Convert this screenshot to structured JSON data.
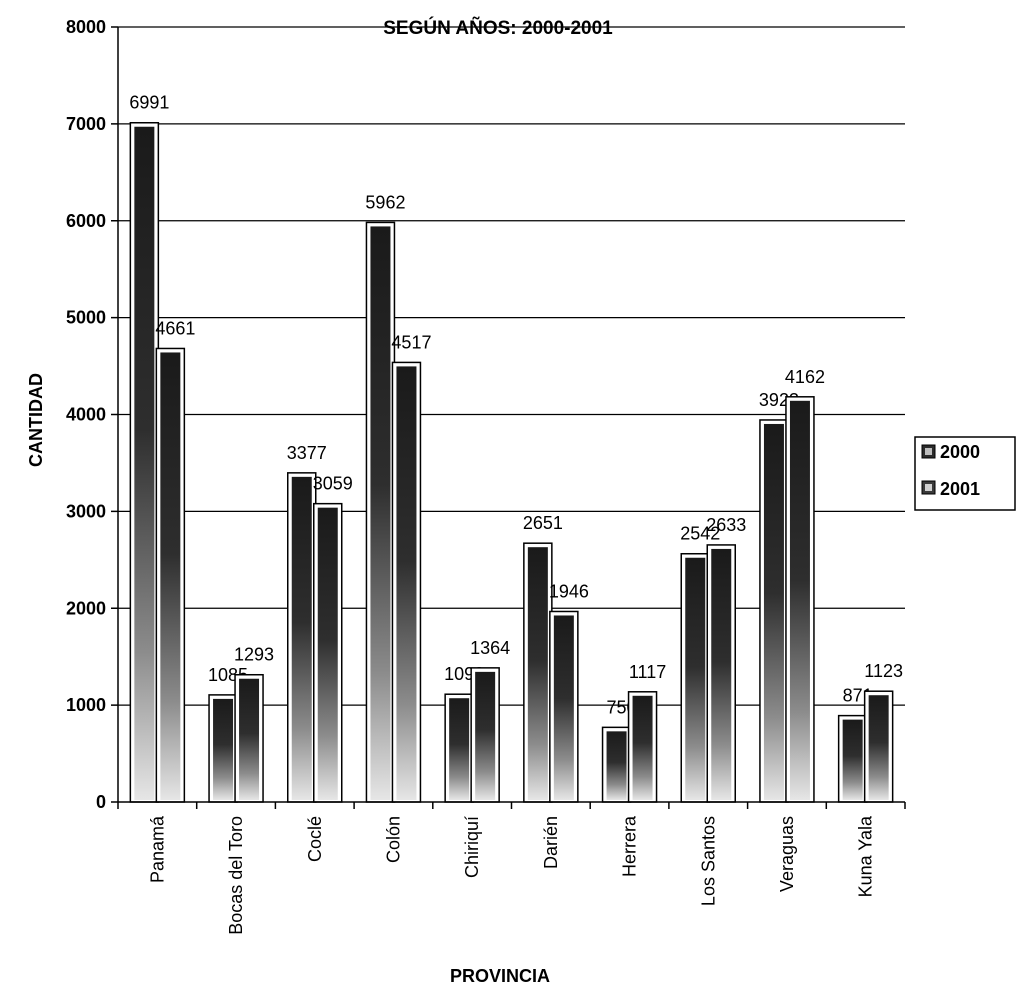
{
  "chart_data": {
    "type": "bar",
    "title": "SEGÚN AÑOS: 2000-2001",
    "xlabel": "PROVINCIA",
    "ylabel": "CANTIDAD",
    "ylim": [
      0,
      8000
    ],
    "yticks": [
      "0",
      "1000",
      "2000",
      "3000",
      "4000",
      "5000",
      "6000",
      "7000",
      "8000"
    ],
    "grid": true,
    "legend": "right",
    "categories": [
      "Panamá",
      "Bocas del Toro",
      "Coclé",
      "Colón",
      "Chiriquí",
      "Darién",
      "Herrera",
      "Los Santos",
      "Veraguas",
      "Kuna Yala"
    ],
    "series": [
      {
        "name": "2000",
        "values": [
          6991,
          1085,
          3377,
          5962,
          1092,
          2651,
          750,
          2542,
          3923,
          871
        ],
        "color": "#2b2b2b"
      },
      {
        "name": "2001",
        "values": [
          4661,
          1293,
          3059,
          4517,
          1364,
          1946,
          1117,
          2633,
          4162,
          1123
        ],
        "color": "#3a3a3a"
      }
    ]
  }
}
